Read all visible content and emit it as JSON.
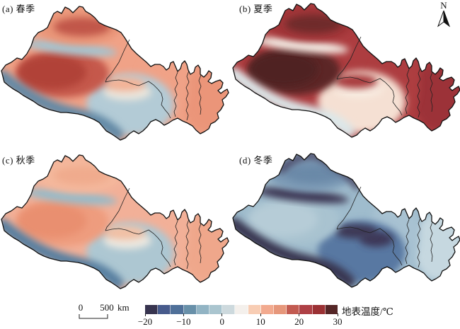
{
  "figure": {
    "background": "#ffffff"
  },
  "panels": [
    {
      "id": "a",
      "label": "(a) 春季",
      "season": "spring",
      "colors": {
        "base": "#f0a287",
        "shaanxi": "#eb9579",
        "east": "#f0a287",
        "qinghai": "#b3cbd6",
        "qinghai_center": "#eae5dc",
        "qinghai_dark": null,
        "qaidam": "#f3b296",
        "tarim": "#c5584c",
        "tarim_core": "#b14338",
        "tianshan": "#a5c3cf",
        "junggar": "#e99578",
        "junggar_core": "#c1564a",
        "kunlun": "#6289a6",
        "north_rim": null
      }
    },
    {
      "id": "b",
      "label": "(b) 夏季",
      "season": "summer",
      "colors": {
        "base": "#ad3d40",
        "shaanxi": "#9c3237",
        "east": "#ad3d40",
        "qinghai": "#f5e0d3",
        "qinghai_center": "#f8ece1",
        "qinghai_dark": null,
        "qaidam": "#a83a3c",
        "tarim": "#5c2627",
        "tarim_core": "#4f2324",
        "tianshan": "#f3ece4",
        "junggar": "#a03439",
        "junggar_core": "#702b2c",
        "kunlun": "#dce8ea",
        "north_rim": null
      }
    },
    {
      "id": "c",
      "label": "(c) 秋季",
      "season": "autumn",
      "colors": {
        "base": "#f2b098",
        "shaanxi": "#efa78b",
        "east": "#f2b098",
        "qinghai": "#adc7d2",
        "qinghai_center": "#ece8e0",
        "qinghai_dark": null,
        "qaidam": "#f2c0a4",
        "tarim": "#ee9c7e",
        "tarim_core": "#e98f6f",
        "tianshan": "#97bac8",
        "junggar": "#f4b89c",
        "junggar_core": "#f0ab8d",
        "kunlun": "#577fa0",
        "north_rim": null
      }
    },
    {
      "id": "d",
      "label": "(d) 冬季",
      "season": "winter",
      "colors": {
        "base": "#9fbccd",
        "shaanxi": "#c6d8e0",
        "east": "#a8c2d2",
        "qinghai": "#5878a2",
        "qinghai_center": null,
        "qinghai_dark": "#3c3958",
        "qaidam": "#3c3954",
        "tarim": "#a9c3d0",
        "tarim_core": "#b6ccd7",
        "tianshan": "#3c3954",
        "junggar": "#7b9ab5",
        "junggar_core": "#6a89a8",
        "kunlun": "#373450",
        "north_rim": "#44415e"
      }
    }
  ],
  "north_arrow": {
    "label": "N"
  },
  "scale_bar": {
    "start_label": "0",
    "end_label": "500",
    "unit": "km"
  },
  "legend": {
    "title": "地表温度/℃",
    "ticks": [
      "−20",
      "−10",
      "0",
      "10",
      "20",
      "30"
    ],
    "tick_values": [
      -20,
      -10,
      0,
      10,
      20,
      30
    ],
    "palette": [
      "#37344f",
      "#475b8c",
      "#4f7099",
      "#6890a9",
      "#92b4c4",
      "#aac5cf",
      "#cdd9dd",
      "#f4f0ec",
      "#f8cdb4",
      "#f2aa8f",
      "#e6977b",
      "#c25b51",
      "#ae4045",
      "#9b3134",
      "#552627"
    ],
    "outline_color": "#111111",
    "border_color": "#222222"
  }
}
